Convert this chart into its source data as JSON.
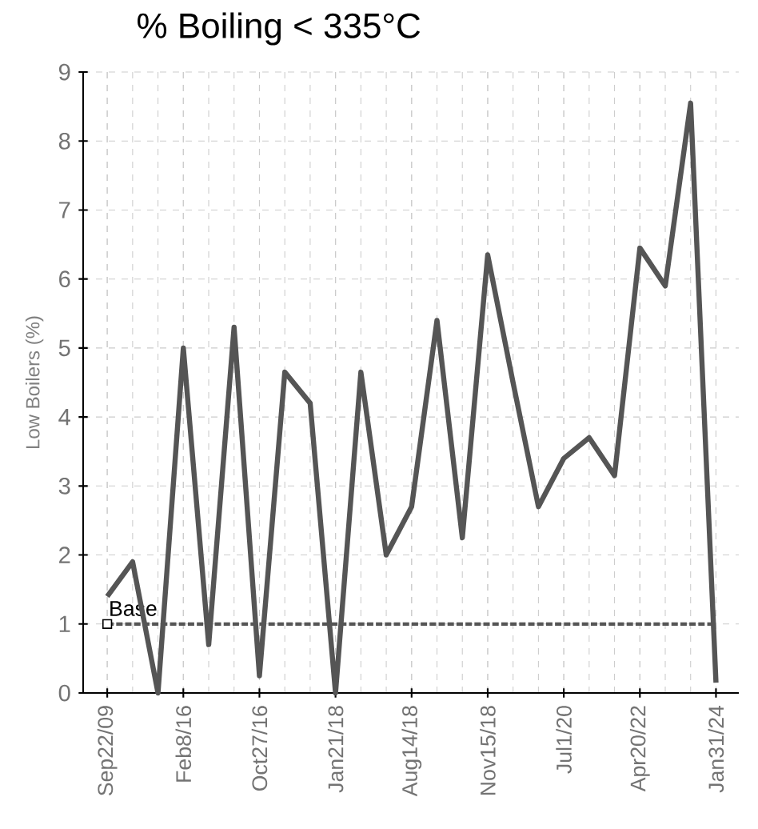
{
  "chart_data": {
    "type": "line",
    "title": "% Boiling < 335°C",
    "ylabel": "Low Boilers (%)",
    "categories": [
      "Sep22/09",
      null,
      null,
      "Feb8/16",
      null,
      null,
      "Oct27/16",
      null,
      null,
      "Jan21/18",
      null,
      null,
      "Aug14/18",
      null,
      null,
      "Nov15/18",
      null,
      null,
      "Jul1/20",
      null,
      null,
      "Apr20/22",
      null,
      null,
      "Jan31/24"
    ],
    "series": [
      {
        "color": "#555555",
        "values": [
          1.4,
          1.9,
          0,
          5.0,
          0.7,
          5.3,
          0.25,
          4.65,
          4.2,
          0,
          4.65,
          2.0,
          2.7,
          5.4,
          2.25,
          6.35,
          4.5,
          2.7,
          3.4,
          3.7,
          3.15,
          6.45,
          5.9,
          8.55,
          0.15
        ]
      }
    ],
    "ylim": [
      0,
      9
    ],
    "yticks": [
      0,
      1,
      2,
      3,
      4,
      5,
      6,
      7,
      8,
      9
    ],
    "grid": true,
    "line_style": "solid",
    "ref_lines": [
      {
        "axis": "y",
        "value": 1,
        "label": "Base",
        "color": "#555555",
        "line_style": "dashed"
      }
    ]
  }
}
